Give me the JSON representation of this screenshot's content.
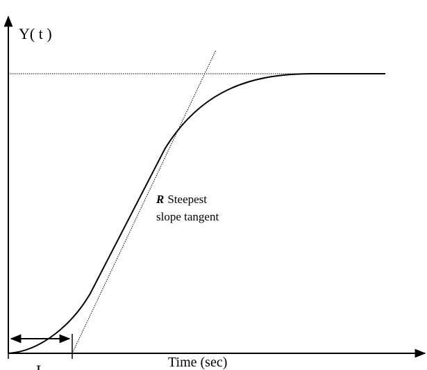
{
  "labels": {
    "y_axis": "Y( t )",
    "x_axis": "Time (sec)",
    "delay": "L"
  },
  "annotation": {
    "symbol": "R",
    "line1": "Steepest",
    "line2": "slope tangent"
  }
}
